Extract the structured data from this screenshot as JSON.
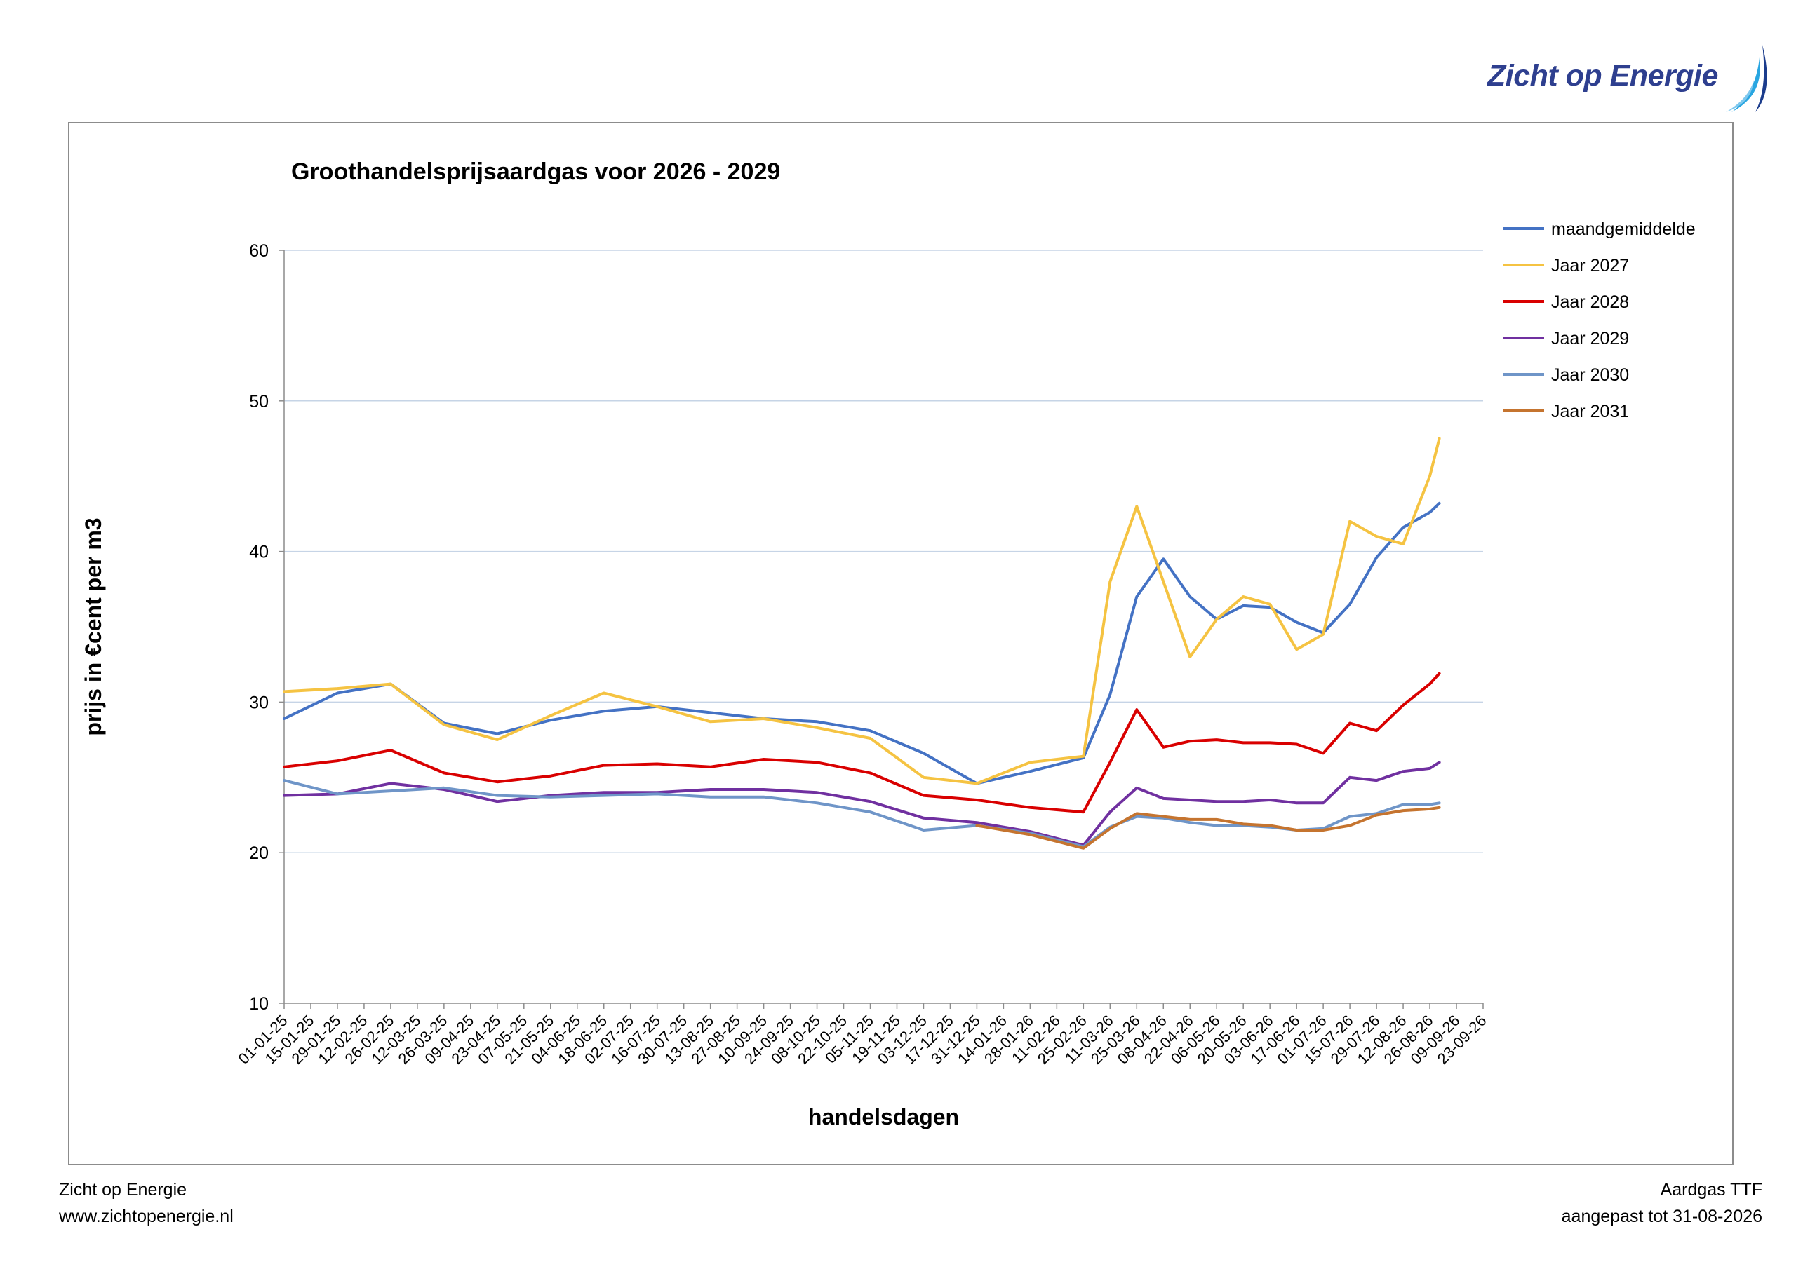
{
  "brand": {
    "name": "Zicht op Energie",
    "website": "www.zichtopenergie.nl",
    "product": "Aardgas TTF",
    "updated": "aangepast tot 31-08-2026",
    "colors": {
      "logo_text": "#2e3f8f",
      "logo_sail": "#29a6e1"
    }
  },
  "chart_data": {
    "type": "line",
    "title": "Groothandelsprijsaardgas voor 2026 - 2029",
    "xlabel": "handelsdagen",
    "ylabel": "prijs in €cent  per m3",
    "ylim": [
      10,
      60
    ],
    "yticks": [
      10,
      20,
      30,
      40,
      50,
      60
    ],
    "grid": true,
    "legend_position": "right",
    "x_tick_labels": [
      "01-01-25",
      "15-01-25",
      "29-01-25",
      "12-02-25",
      "26-02-25",
      "12-03-25",
      "26-03-25",
      "09-04-25",
      "23-04-25",
      "07-05-25",
      "21-05-25",
      "04-06-25",
      "18-06-25",
      "02-07-25",
      "16-07-25",
      "30-07-25",
      "13-08-25",
      "27-08-25",
      "10-09-25",
      "24-09-25",
      "08-10-25",
      "22-10-25",
      "05-11-25",
      "19-11-25",
      "03-12-25",
      "17-12-25",
      "31-12-25",
      "14-01-26",
      "28-01-26",
      "11-02-26",
      "25-02-26",
      "11-03-26",
      "25-03-26",
      "08-04-26",
      "22-04-26",
      "06-05-26",
      "20-05-26",
      "03-06-26",
      "17-06-26",
      "01-07-26",
      "15-07-26",
      "29-07-26",
      "12-08-26",
      "26-08-26",
      "09-09-26",
      "23-09-26"
    ],
    "x_dates": [
      "01-01-25",
      "29-01-25",
      "26-02-25",
      "26-03-25",
      "23-04-25",
      "21-05-25",
      "18-06-25",
      "16-07-25",
      "13-08-25",
      "10-09-25",
      "08-10-25",
      "05-11-25",
      "03-12-25",
      "31-12-25",
      "28-01-26",
      "25-02-26",
      "11-03-26",
      "25-03-26",
      "08-04-26",
      "22-04-26",
      "06-05-26",
      "20-05-26",
      "03-06-26",
      "17-06-26",
      "01-07-26",
      "15-07-26",
      "29-07-26",
      "12-08-26",
      "26-08-26",
      "31-08-26"
    ],
    "series": [
      {
        "name": "maandgemiddelde",
        "color": "#4472c4",
        "values": [
          28.9,
          30.6,
          31.2,
          28.6,
          27.9,
          28.8,
          29.4,
          29.7,
          29.3,
          28.9,
          28.7,
          28.1,
          26.6,
          24.6,
          25.4,
          26.3,
          30.5,
          37.0,
          39.5,
          37.0,
          35.5,
          36.4,
          36.3,
          35.3,
          34.6,
          36.5,
          39.6,
          41.6,
          42.6,
          43.2
        ]
      },
      {
        "name": "Jaar 2027",
        "color": "#f5c342",
        "values": [
          30.7,
          30.9,
          31.2,
          28.5,
          27.5,
          29.1,
          30.6,
          29.7,
          28.7,
          28.9,
          28.3,
          27.6,
          25.0,
          24.6,
          26.0,
          26.4,
          38.0,
          43.0,
          38.0,
          33.0,
          35.5,
          37.0,
          36.5,
          33.5,
          34.5,
          42.0,
          41.0,
          40.5,
          45.0,
          47.5
        ]
      },
      {
        "name": "Jaar 2028",
        "color": "#d90000",
        "values": [
          25.7,
          26.1,
          26.8,
          25.3,
          24.7,
          25.1,
          25.8,
          25.9,
          25.7,
          26.2,
          26.0,
          25.3,
          23.8,
          23.5,
          23.0,
          22.7,
          26.0,
          29.5,
          27.0,
          27.4,
          27.5,
          27.3,
          27.3,
          27.2,
          26.6,
          28.6,
          28.1,
          29.8,
          31.2,
          31.9
        ]
      },
      {
        "name": "Jaar 2029",
        "color": "#7030a0",
        "values": [
          23.8,
          23.9,
          24.6,
          24.2,
          23.4,
          23.8,
          24.0,
          24.0,
          24.2,
          24.2,
          24.0,
          23.4,
          22.3,
          22.0,
          21.4,
          20.5,
          22.7,
          24.3,
          23.6,
          23.5,
          23.4,
          23.4,
          23.5,
          23.3,
          23.3,
          25.0,
          24.8,
          25.4,
          25.6,
          26.0
        ]
      },
      {
        "name": "Jaar 2030",
        "color": "#6f95c8",
        "values": [
          24.8,
          23.9,
          24.1,
          24.3,
          23.8,
          23.7,
          23.8,
          23.9,
          23.7,
          23.7,
          23.3,
          22.7,
          21.5,
          21.8,
          21.3,
          20.4,
          21.7,
          22.4,
          22.3,
          22.0,
          21.8,
          21.8,
          21.7,
          21.5,
          21.6,
          22.4,
          22.6,
          23.2,
          23.2,
          23.3
        ]
      },
      {
        "name": "Jaar 2031",
        "color": "#c5742f",
        "values": [
          null,
          null,
          null,
          null,
          null,
          null,
          null,
          null,
          null,
          null,
          null,
          null,
          null,
          21.8,
          21.2,
          20.3,
          21.6,
          22.6,
          22.4,
          22.2,
          22.2,
          21.9,
          21.8,
          21.5,
          21.5,
          21.8,
          22.5,
          22.8,
          22.9,
          23.0
        ]
      }
    ]
  }
}
